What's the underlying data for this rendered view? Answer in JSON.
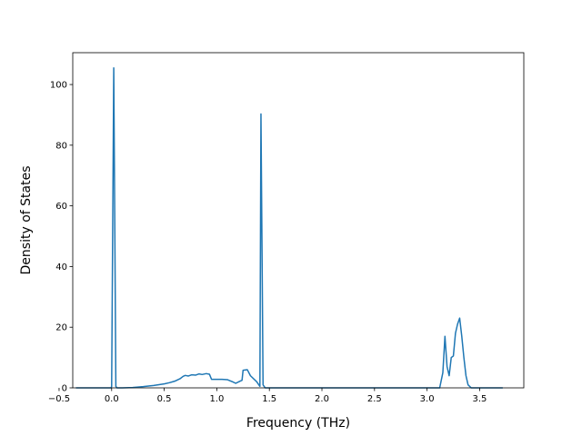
{
  "chart_data": {
    "type": "line",
    "title": "",
    "xlabel": "Frequency (THz)",
    "ylabel": "Density of States",
    "xlim": [
      -0.37,
      3.92
    ],
    "ylim": [
      0,
      110.5
    ],
    "x_ticks": [
      -0.5,
      0.0,
      0.5,
      1.0,
      1.5,
      2.0,
      2.5,
      3.0,
      3.5
    ],
    "x_tick_labels": [
      "−0.5",
      "0.0",
      "0.5",
      "1.0",
      "1.5",
      "2.0",
      "2.5",
      "3.0",
      "3.5"
    ],
    "y_ticks": [
      0,
      20,
      40,
      60,
      80,
      100
    ],
    "y_tick_labels": [
      "0",
      "20",
      "40",
      "60",
      "80",
      "100"
    ],
    "grid": false,
    "legend": "none",
    "color": "#1f77b4",
    "series": [
      {
        "values": [
          [
            -0.34,
            0
          ],
          [
            -0.005,
            0
          ],
          [
            0.0,
            0.5
          ],
          [
            0.02,
            105.5
          ],
          [
            0.04,
            0.5
          ],
          [
            0.05,
            0
          ],
          [
            0.1,
            0
          ],
          [
            0.2,
            0.1
          ],
          [
            0.3,
            0.4
          ],
          [
            0.4,
            0.8
          ],
          [
            0.5,
            1.3
          ],
          [
            0.55,
            1.7
          ],
          [
            0.6,
            2.2
          ],
          [
            0.65,
            3.0
          ],
          [
            0.68,
            3.8
          ],
          [
            0.7,
            4.1
          ],
          [
            0.73,
            3.9
          ],
          [
            0.76,
            4.3
          ],
          [
            0.8,
            4.2
          ],
          [
            0.83,
            4.6
          ],
          [
            0.86,
            4.4
          ],
          [
            0.9,
            4.7
          ],
          [
            0.93,
            4.5
          ],
          [
            0.95,
            2.8
          ],
          [
            1.0,
            2.8
          ],
          [
            1.05,
            2.8
          ],
          [
            1.1,
            2.7
          ],
          [
            1.15,
            2.0
          ],
          [
            1.18,
            1.5
          ],
          [
            1.22,
            2.2
          ],
          [
            1.24,
            2.5
          ],
          [
            1.25,
            5.8
          ],
          [
            1.29,
            6.0
          ],
          [
            1.32,
            4.0
          ],
          [
            1.38,
            2.0
          ],
          [
            1.4,
            1.0
          ],
          [
            1.41,
            0.5
          ],
          [
            1.42,
            90.3
          ],
          [
            1.44,
            1.0
          ],
          [
            1.46,
            0
          ],
          [
            1.6,
            0
          ],
          [
            2.0,
            0
          ],
          [
            2.5,
            0
          ],
          [
            3.0,
            0
          ],
          [
            3.12,
            0
          ],
          [
            3.15,
            5.0
          ],
          [
            3.17,
            17.0
          ],
          [
            3.19,
            7.0
          ],
          [
            3.21,
            4.0
          ],
          [
            3.23,
            10.0
          ],
          [
            3.25,
            10.5
          ],
          [
            3.27,
            18.0
          ],
          [
            3.29,
            21.0
          ],
          [
            3.31,
            23.0
          ],
          [
            3.33,
            17.0
          ],
          [
            3.35,
            10.0
          ],
          [
            3.37,
            4.0
          ],
          [
            3.39,
            1.0
          ],
          [
            3.42,
            0
          ],
          [
            3.6,
            0
          ],
          [
            3.72,
            0
          ]
        ]
      }
    ]
  }
}
